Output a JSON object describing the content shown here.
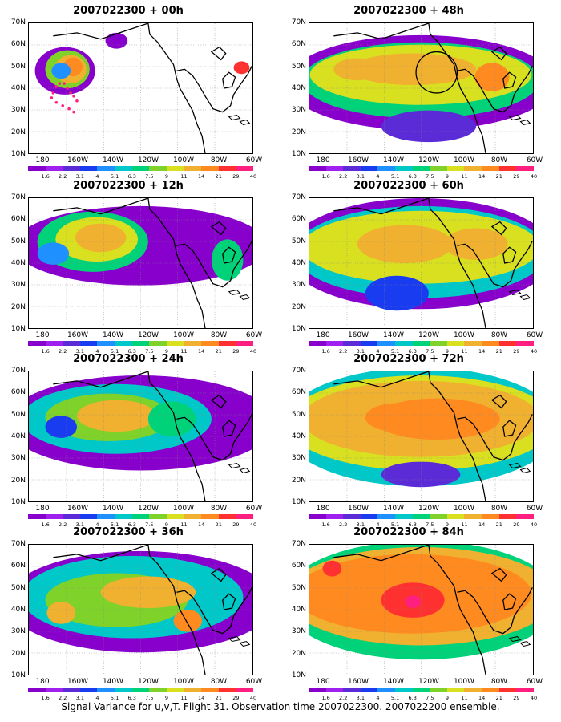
{
  "panels": [
    {
      "title": "2007022300 + 00h"
    },
    {
      "title": "2007022300 + 48h"
    },
    {
      "title": "2007022300 + 12h"
    },
    {
      "title": "2007022300 + 60h"
    },
    {
      "title": "2007022300 + 24h"
    },
    {
      "title": "2007022300 + 72h"
    },
    {
      "title": "2007022300 + 36h"
    },
    {
      "title": "2007022300 + 84h"
    }
  ],
  "lat_labels": [
    "70N",
    "60N",
    "50N",
    "40N",
    "30N",
    "20N",
    "10N"
  ],
  "lon_labels": [
    "180",
    "160W",
    "140W",
    "120W",
    "100W",
    "80W",
    "60W"
  ],
  "colorbar": {
    "labels": [
      "1.6",
      "2.2",
      "3.1",
      "4",
      "5.1",
      "6.3",
      "7.5",
      "9",
      "11",
      "14",
      "21",
      "29",
      "40"
    ],
    "colors": [
      "#8800cc",
      "#a020f0",
      "#5a2bd6",
      "#1a3cf0",
      "#1e90ff",
      "#00c8c8",
      "#00d27a",
      "#7fd22a",
      "#d8e020",
      "#f0b030",
      "#ff8a20",
      "#ff3030",
      "#ff1f7f"
    ]
  },
  "caption": "Signal Variance for u,v,T. Flight 31. Observation time 2007022300. 2007022200 ensemble."
}
